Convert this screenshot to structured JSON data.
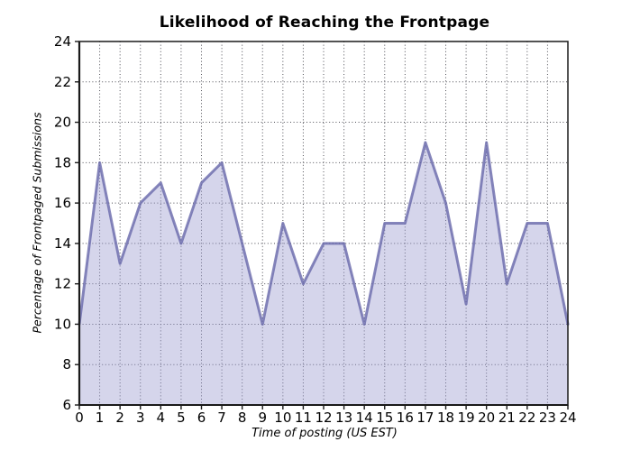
{
  "chart_data": {
    "type": "area",
    "title": "Likelihood of Reaching the Frontpage",
    "xlabel": "Time of posting (US EST)",
    "ylabel": "Percentage of Frontpaged Submissions",
    "x": [
      0,
      1,
      2,
      3,
      4,
      5,
      6,
      7,
      8,
      9,
      10,
      11,
      12,
      13,
      14,
      15,
      16,
      17,
      18,
      19,
      20,
      21,
      22,
      23,
      24
    ],
    "values": [
      10,
      18,
      13,
      16,
      17,
      14,
      17,
      18,
      14,
      10,
      15,
      12,
      14,
      14,
      10,
      15,
      15,
      19,
      16,
      11,
      19,
      12,
      15,
      15,
      10
    ],
    "xlim": [
      0,
      24
    ],
    "ylim": [
      6,
      24
    ],
    "xticks": [
      0,
      1,
      2,
      3,
      4,
      5,
      6,
      7,
      8,
      9,
      10,
      11,
      12,
      13,
      14,
      15,
      16,
      17,
      18,
      19,
      20,
      21,
      22,
      23,
      24
    ],
    "yticks": [
      6,
      8,
      10,
      12,
      14,
      16,
      18,
      20,
      22,
      24
    ],
    "grid": true,
    "grid_style": "dotted",
    "legend": "none",
    "colors": {
      "line": "rgba(100,100,168,0.78)",
      "fill": "rgba(154,154,208,0.42)",
      "line_solid": "#8686bb",
      "fill_solid": "#d5d5eb",
      "grid": "#4d4d55",
      "axis": "#1a1a1a",
      "text": "#000000",
      "background": "#ffffff"
    }
  }
}
